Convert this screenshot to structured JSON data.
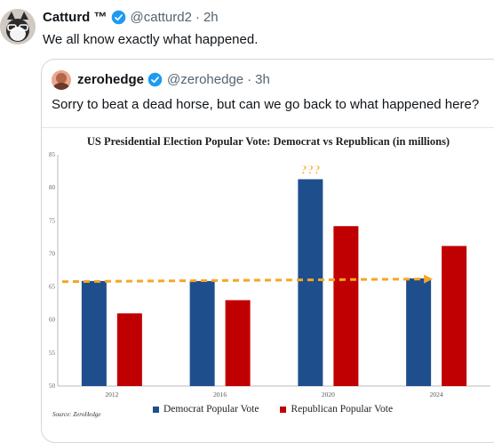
{
  "tweet": {
    "name": "Catturd ™",
    "handle": "@catturd2",
    "separator": "·",
    "time": "2h",
    "text": "We all know exactly what happened."
  },
  "quote": {
    "name": "zerohedge",
    "handle": "@zerohedge",
    "separator": "·",
    "time": "3h",
    "text": "Sorry to beat a dead horse, but can we go back to what happened here?"
  },
  "colors": {
    "verified": "#1d9bf0",
    "democrat": "#1f4e8c",
    "republican": "#c00000",
    "trend": "#f5a623"
  },
  "chart_data": {
    "type": "bar",
    "title": "US Presidential Election Popular Vote: Democrat vs Republican (in millions)",
    "categories": [
      "2012",
      "2016",
      "2020",
      "2024"
    ],
    "series": [
      {
        "name": "Democrat Popular Vote",
        "values": [
          65.9,
          65.9,
          81.3,
          66.3
        ]
      },
      {
        "name": "Republican Popular Vote",
        "values": [
          61.0,
          63.0,
          74.2,
          71.2
        ]
      }
    ],
    "ylim": [
      50,
      85
    ],
    "yticks": [
      "50",
      "55",
      "60",
      "65",
      "70",
      "75",
      "80",
      "85"
    ],
    "annotation": "???",
    "trend_line": [
      65.8,
      66.2
    ],
    "legend_position": "bottom",
    "grid": false,
    "source": "Source: ZeroHedge"
  }
}
